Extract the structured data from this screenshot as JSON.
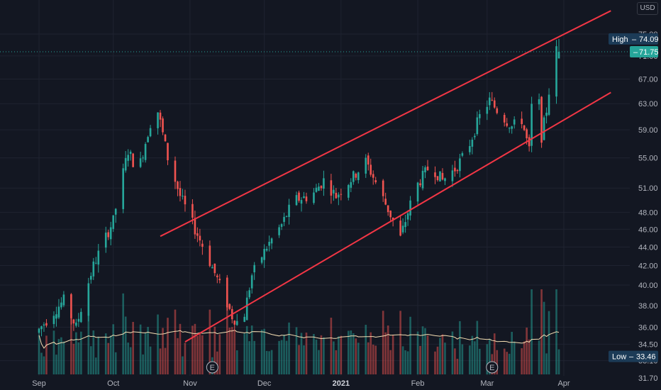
{
  "currency": "USD",
  "high_label": "High",
  "high_value": "74.09",
  "low_label": "Low",
  "low_value": "33.46",
  "last_price": "71.75",
  "earnings_marker": "E",
  "colors": {
    "background": "#131722",
    "up": "#26a69a",
    "down": "#ef5350",
    "trend_line": "#f23645",
    "ma_line": "#f5deb3",
    "high_tag": "#1c3b57",
    "low_tag": "#1c3b57",
    "last_tag": "#26a69a"
  },
  "chart_data": {
    "type": "candlestick",
    "y_ticks": [
      "75.00",
      "71.00",
      "67.00",
      "63.00",
      "59.00",
      "55.00",
      "51.00",
      "48.00",
      "46.00",
      "44.00",
      "42.00",
      "40.00",
      "38.00",
      "36.00",
      "34.50",
      "33.10",
      "31.70"
    ],
    "x_ticks": [
      "Sep",
      "Oct",
      "Nov",
      "Dec",
      "2021",
      "Feb",
      "Mar",
      "Apr"
    ],
    "channel_upper": [
      {
        "date": "2020-10-20",
        "price": 45.2
      },
      {
        "date": "2021-04-20",
        "price": 79.5
      }
    ],
    "channel_lower": [
      {
        "date": "2020-10-30",
        "price": 34.7
      },
      {
        "date": "2021-04-20",
        "price": 64.8
      }
    ],
    "earnings_dates": [
      "2020-11-10",
      "2021-03-03"
    ],
    "high": 74.09,
    "low": 33.46,
    "last": 71.75
  }
}
